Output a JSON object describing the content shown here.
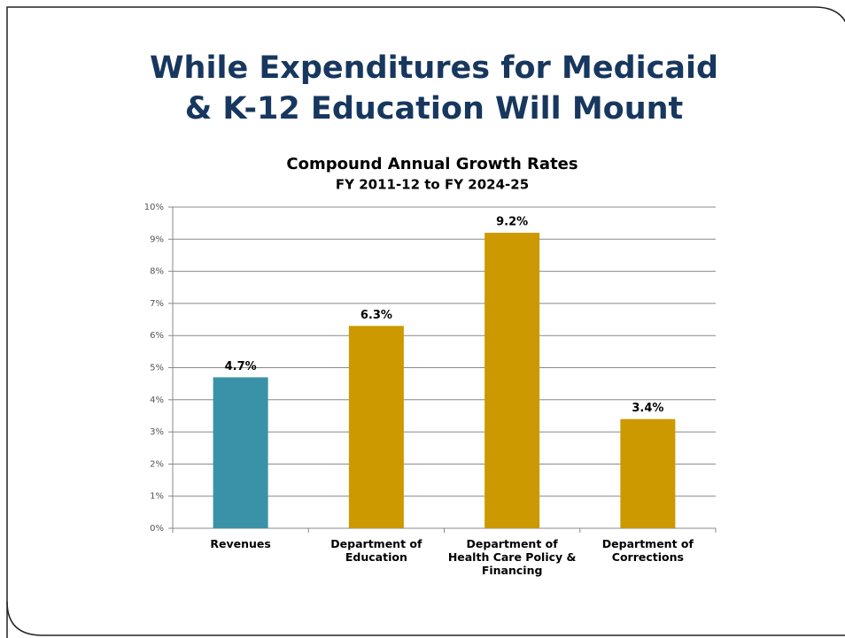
{
  "slide": {
    "title_lines": [
      "While Expenditures for Medicaid",
      "& K-12 Education Will Mount"
    ]
  },
  "chart_data": {
    "type": "bar",
    "title": "Compound Annual Growth Rates",
    "subtitle": "FY 2011-12 to FY 2024-25",
    "categories": [
      "Revenues",
      "Department of Education",
      "Department of Health Care Policy & Financing",
      "Department of Corrections"
    ],
    "values": [
      4.7,
      6.3,
      9.2,
      3.4
    ],
    "value_labels": [
      "4.7%",
      "6.3%",
      "9.2%",
      "3.4%"
    ],
    "colors": [
      "#3a92a8",
      "#cc9900",
      "#cc9900",
      "#cc9900"
    ],
    "ylim": [
      0,
      10
    ],
    "yticks": [
      {
        "value": 0,
        "label": "0%"
      },
      {
        "value": 1,
        "label": "1%"
      },
      {
        "value": 2,
        "label": "2%"
      },
      {
        "value": 3,
        "label": "3%"
      },
      {
        "value": 4,
        "label": "4%"
      },
      {
        "value": 5,
        "label": "5%"
      },
      {
        "value": 6,
        "label": "6%"
      },
      {
        "value": 7,
        "label": "7%"
      },
      {
        "value": 8,
        "label": "8%"
      },
      {
        "value": 9,
        "label": "9%"
      },
      {
        "value": 10,
        "label": "10%"
      }
    ],
    "grid": true
  }
}
